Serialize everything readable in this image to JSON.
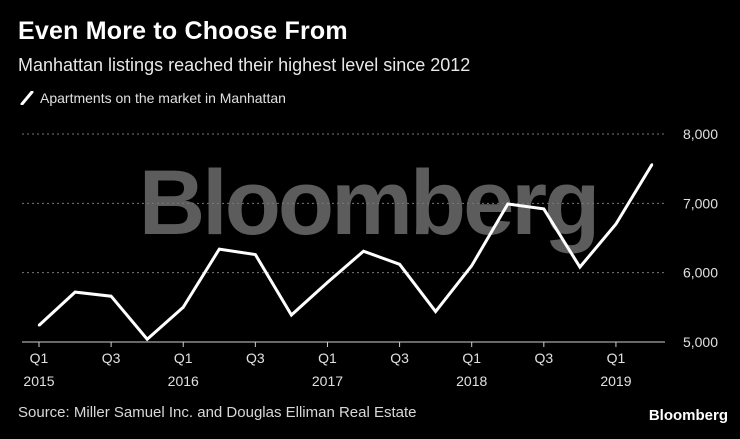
{
  "header": {
    "title": "Even More to Choose From",
    "subtitle": "Manhattan listings reached their highest level since 2012"
  },
  "legend": {
    "label": "Apartments on the market in Manhattan"
  },
  "footer": {
    "source": "Source: Miller Samuel Inc. and Douglas Elliman Real Estate",
    "logo": "Bloomberg"
  },
  "watermark": "Bloomberg",
  "colors": {
    "background": "#000000",
    "line": "#ffffff",
    "grid": "#777777",
    "watermark": "#5c5c5c"
  },
  "chart_data": {
    "type": "line",
    "title": "Even More to Choose From",
    "subtitle": "Manhattan listings reached their highest level since 2012",
    "xlabel": "",
    "ylabel": "",
    "ylim": [
      5000,
      8000
    ],
    "yticks": [
      5000,
      6000,
      7000,
      8000
    ],
    "ytick_labels": [
      "5,000",
      "6,000",
      "7,000",
      "8,000"
    ],
    "grid": true,
    "legend_position": "top-left",
    "x": [
      "2015 Q1",
      "2015 Q2",
      "2015 Q3",
      "2015 Q4",
      "2016 Q1",
      "2016 Q2",
      "2016 Q3",
      "2016 Q4",
      "2017 Q1",
      "2017 Q2",
      "2017 Q3",
      "2017 Q4",
      "2018 Q1",
      "2018 Q2",
      "2018 Q3",
      "2018 Q4",
      "2019 Q1",
      "2019 Q2"
    ],
    "xtick_labels": [
      {
        "index": 0,
        "quarter": "Q1",
        "year": "2015"
      },
      {
        "index": 2,
        "quarter": "Q3",
        "year": ""
      },
      {
        "index": 4,
        "quarter": "Q1",
        "year": "2016"
      },
      {
        "index": 6,
        "quarter": "Q3",
        "year": ""
      },
      {
        "index": 8,
        "quarter": "Q1",
        "year": "2017"
      },
      {
        "index": 10,
        "quarter": "Q3",
        "year": ""
      },
      {
        "index": 12,
        "quarter": "Q1",
        "year": "2018"
      },
      {
        "index": 14,
        "quarter": "Q3",
        "year": ""
      },
      {
        "index": 16,
        "quarter": "Q1",
        "year": "2019"
      }
    ],
    "series": [
      {
        "name": "Apartments on the market in Manhattan",
        "values": [
          5240,
          5720,
          5660,
          5040,
          5500,
          6340,
          6260,
          5390,
          5860,
          6310,
          6120,
          5440,
          6100,
          6990,
          6920,
          6080,
          6700,
          7560
        ]
      }
    ]
  }
}
